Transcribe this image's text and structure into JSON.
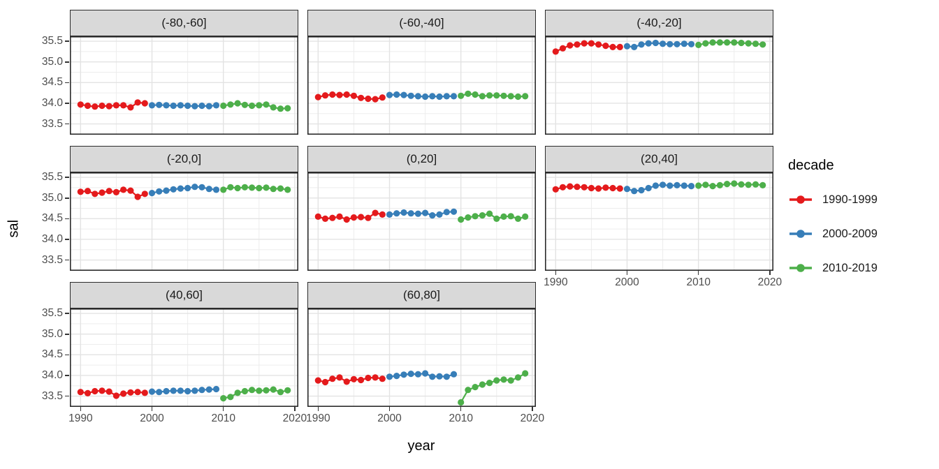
{
  "figure": {
    "y_axis_title": "sal",
    "x_axis_title": "year"
  },
  "legend": {
    "title": "decade",
    "entries": [
      {
        "label": "1990-1999",
        "color": "#E41A1C"
      },
      {
        "label": "2000-2009",
        "color": "#377EB8"
      },
      {
        "label": "2010-2019",
        "color": "#4DAF4A"
      }
    ]
  },
  "chart_data": {
    "type": "scatter",
    "title": "",
    "xlabel": "year",
    "ylabel": "sal",
    "x_range": [
      1988.5,
      2020.5
    ],
    "y_range": [
      33.24,
      35.62
    ],
    "x_ticks": [
      1990,
      2000,
      2010,
      2020
    ],
    "y_ticks": [
      35.5,
      35.0,
      34.5,
      34.0,
      33.5
    ],
    "x_minor_gridlines": [
      1995,
      2005,
      2015
    ],
    "y_minor_gridlines": [
      33.75,
      34.25,
      34.75,
      35.25
    ],
    "grid": "on",
    "legend_position": "right",
    "facet_variable": "latitude band",
    "facets": [
      {
        "label": "(-80,-60]",
        "series": [
          {
            "name": "1990-1999",
            "color": "#E41A1C",
            "start_year": 1990,
            "values": [
              33.97,
              33.94,
              33.92,
              33.94,
              33.93,
              33.95,
              33.95,
              33.9,
              34.02,
              34.0
            ]
          },
          {
            "name": "2000-2009",
            "color": "#377EB8",
            "start_year": 2000,
            "values": [
              33.95,
              33.96,
              33.95,
              33.94,
              33.95,
              33.94,
              33.93,
              33.94,
              33.93,
              33.95
            ]
          },
          {
            "name": "2010-2019",
            "color": "#4DAF4A",
            "start_year": 2010,
            "values": [
              33.94,
              33.97,
              34.0,
              33.96,
              33.94,
              33.95,
              33.97,
              33.9,
              33.87,
              33.88
            ]
          }
        ]
      },
      {
        "label": "(-60,-40]",
        "series": [
          {
            "name": "1990-1999",
            "color": "#E41A1C",
            "start_year": 1990,
            "values": [
              34.15,
              34.19,
              34.21,
              34.2,
              34.21,
              34.18,
              34.13,
              34.11,
              34.1,
              34.14
            ]
          },
          {
            "name": "2000-2009",
            "color": "#377EB8",
            "start_year": 2000,
            "values": [
              34.2,
              34.21,
              34.2,
              34.18,
              34.17,
              34.16,
              34.17,
              34.16,
              34.17,
              34.17
            ]
          },
          {
            "name": "2010-2019",
            "color": "#4DAF4A",
            "start_year": 2010,
            "values": [
              34.18,
              34.23,
              34.21,
              34.17,
              34.19,
              34.19,
              34.18,
              34.17,
              34.16,
              34.17
            ]
          }
        ]
      },
      {
        "label": "(-40,-20]",
        "series": [
          {
            "name": "1990-1999",
            "color": "#E41A1C",
            "start_year": 1990,
            "values": [
              35.25,
              35.33,
              35.4,
              35.42,
              35.45,
              35.45,
              35.42,
              35.39,
              35.36,
              35.36
            ]
          },
          {
            "name": "2000-2009",
            "color": "#377EB8",
            "start_year": 2000,
            "values": [
              35.38,
              35.36,
              35.42,
              35.45,
              35.46,
              35.44,
              35.43,
              35.43,
              35.44,
              35.43
            ]
          },
          {
            "name": "2010-2019",
            "color": "#4DAF4A",
            "start_year": 2010,
            "values": [
              35.41,
              35.45,
              35.47,
              35.47,
              35.47,
              35.47,
              35.46,
              35.45,
              35.44,
              35.42
            ]
          }
        ]
      },
      {
        "label": "(-20,0]",
        "series": [
          {
            "name": "1990-1999",
            "color": "#E41A1C",
            "start_year": 1990,
            "values": [
              35.15,
              35.17,
              35.1,
              35.13,
              35.17,
              35.14,
              35.2,
              35.18,
              35.03,
              35.1
            ]
          },
          {
            "name": "2000-2009",
            "color": "#377EB8",
            "start_year": 2000,
            "values": [
              35.12,
              35.16,
              35.18,
              35.21,
              35.23,
              35.24,
              35.27,
              35.26,
              35.22,
              35.2
            ]
          },
          {
            "name": "2010-2019",
            "color": "#4DAF4A",
            "start_year": 2010,
            "values": [
              35.2,
              35.26,
              35.24,
              35.26,
              35.25,
              35.24,
              35.25,
              35.22,
              35.23,
              35.2
            ]
          }
        ]
      },
      {
        "label": "(0,20]",
        "series": [
          {
            "name": "1990-1999",
            "color": "#E41A1C",
            "start_year": 1990,
            "values": [
              34.55,
              34.5,
              34.52,
              34.55,
              34.48,
              34.53,
              34.54,
              34.52,
              34.64,
              34.6
            ]
          },
          {
            "name": "2000-2009",
            "color": "#377EB8",
            "start_year": 2000,
            "values": [
              34.6,
              34.63,
              34.65,
              34.63,
              34.62,
              34.64,
              34.58,
              34.6,
              34.66,
              34.67
            ]
          },
          {
            "name": "2010-2019",
            "color": "#4DAF4A",
            "start_year": 2010,
            "values": [
              34.48,
              34.53,
              34.56,
              34.58,
              34.62,
              34.5,
              34.55,
              34.56,
              34.5,
              34.55
            ]
          }
        ]
      },
      {
        "label": "(20,40]",
        "series": [
          {
            "name": "1990-1999",
            "color": "#E41A1C",
            "start_year": 1990,
            "values": [
              35.21,
              35.26,
              35.28,
              35.27,
              35.26,
              35.24,
              35.23,
              35.25,
              35.24,
              35.23
            ]
          },
          {
            "name": "2000-2009",
            "color": "#377EB8",
            "start_year": 2000,
            "values": [
              35.22,
              35.17,
              35.19,
              35.24,
              35.3,
              35.32,
              35.3,
              35.31,
              35.3,
              35.29
            ]
          },
          {
            "name": "2010-2019",
            "color": "#4DAF4A",
            "start_year": 2010,
            "values": [
              35.3,
              35.32,
              35.29,
              35.31,
              35.34,
              35.35,
              35.33,
              35.32,
              35.33,
              35.31
            ]
          }
        ]
      },
      {
        "label": "(40,60]",
        "series": [
          {
            "name": "1990-1999",
            "color": "#E41A1C",
            "start_year": 1990,
            "values": [
              33.6,
              33.57,
              33.62,
              33.63,
              33.61,
              33.51,
              33.56,
              33.59,
              33.6,
              33.58
            ]
          },
          {
            "name": "2000-2009",
            "color": "#377EB8",
            "start_year": 2000,
            "values": [
              33.61,
              33.6,
              33.62,
              33.63,
              33.63,
              33.62,
              33.63,
              33.65,
              33.66,
              33.67
            ]
          },
          {
            "name": "2010-2019",
            "color": "#4DAF4A",
            "start_year": 2010,
            "values": [
              33.45,
              33.48,
              33.58,
              33.62,
              33.65,
              33.63,
              33.64,
              33.66,
              33.6,
              33.64
            ]
          }
        ]
      },
      {
        "label": "(60,80]",
        "series": [
          {
            "name": "1990-1999",
            "color": "#E41A1C",
            "start_year": 1990,
            "values": [
              33.88,
              33.84,
              33.92,
              33.95,
              33.85,
              33.91,
              33.89,
              33.94,
              33.95,
              33.92
            ]
          },
          {
            "name": "2000-2009",
            "color": "#377EB8",
            "start_year": 2000,
            "values": [
              33.97,
              33.99,
              34.02,
              34.04,
              34.03,
              34.05,
              33.97,
              33.98,
              33.97,
              34.03
            ]
          },
          {
            "name": "2010-2019",
            "color": "#4DAF4A",
            "start_year": 2010,
            "values": [
              33.35,
              33.65,
              33.72,
              33.78,
              33.82,
              33.88,
              33.9,
              33.88,
              33.95,
              34.05
            ]
          }
        ]
      }
    ]
  }
}
